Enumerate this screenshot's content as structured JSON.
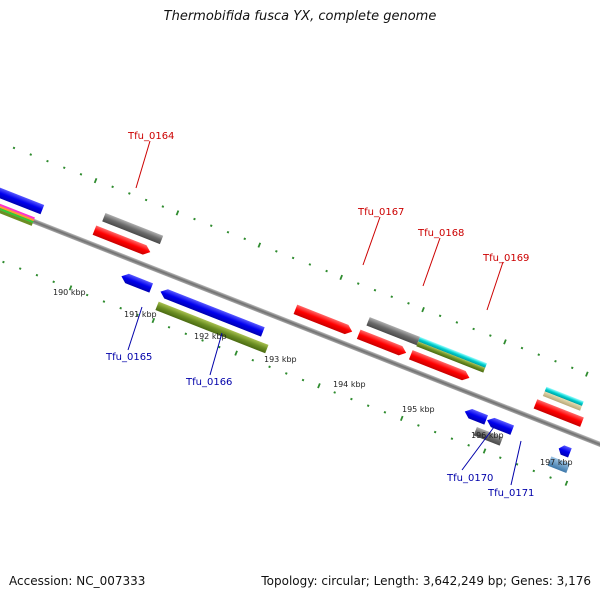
{
  "title": "Thermobifida fusca YX, complete genome",
  "footer": {
    "accession": "Accession: NC_007333",
    "summary": "Topology: circular; Length: 3,642,249 bp; Genes: 3,176"
  },
  "colors": {
    "forward_gene": "#ff0000",
    "reverse_gene": "#0000ee",
    "label_forward": "#cc0000",
    "label_reverse": "#0000aa",
    "tick": "#2e8b2e",
    "backbone": "#808080"
  },
  "kbp_ticks": [
    "190 kbp",
    "191 kbp",
    "192 kbp",
    "193 kbp",
    "194 kbp",
    "195 kbp",
    "196 kbp",
    "197 kbp"
  ],
  "gene_labels": [
    {
      "name": "Tfu_0164",
      "strand": "forward"
    },
    {
      "name": "Tfu_0167",
      "strand": "forward"
    },
    {
      "name": "Tfu_0168",
      "strand": "forward"
    },
    {
      "name": "Tfu_0169",
      "strand": "forward"
    },
    {
      "name": "Tfu_0165",
      "strand": "reverse"
    },
    {
      "name": "Tfu_0166",
      "strand": "reverse"
    },
    {
      "name": "Tfu_0170",
      "strand": "reverse"
    },
    {
      "name": "Tfu_0171",
      "strand": "reverse"
    }
  ]
}
